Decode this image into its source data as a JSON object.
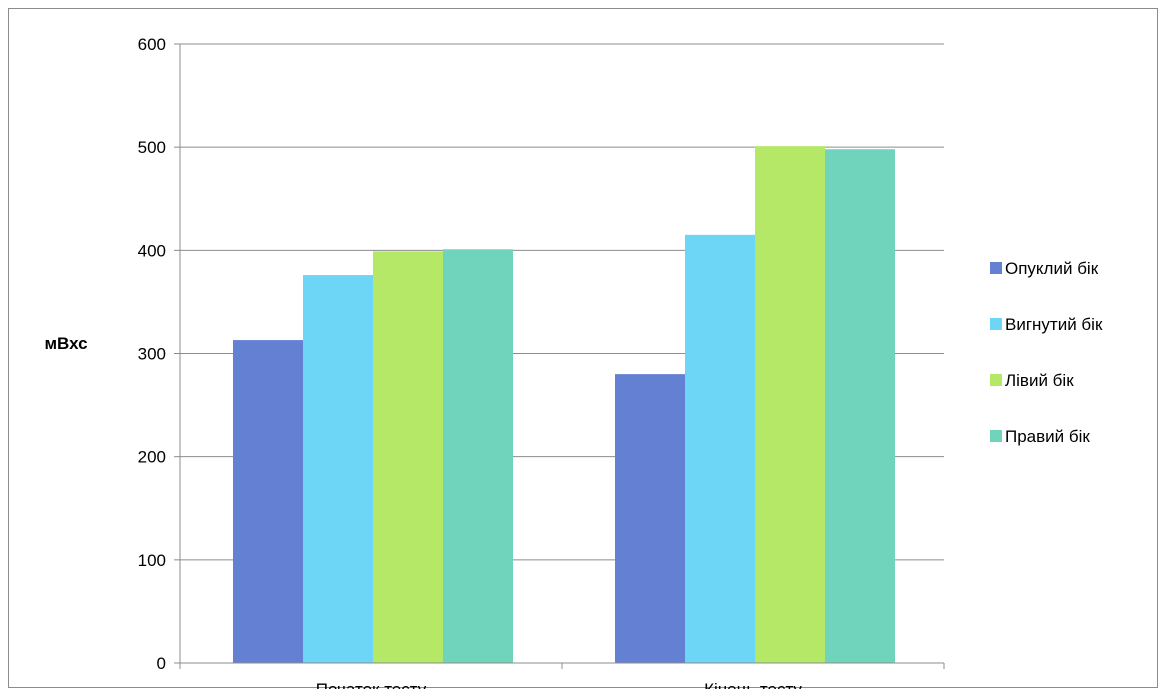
{
  "chart_data": {
    "type": "bar",
    "title": "",
    "xlabel": "",
    "ylabel": "мВхс",
    "ylim": [
      0,
      600
    ],
    "yticks": [
      0,
      100,
      200,
      300,
      400,
      500,
      600
    ],
    "grid": true,
    "legend_position": "right",
    "categories": [
      "Початок тесту",
      "Кінець тесту"
    ],
    "series": [
      {
        "name": "Опуклий бік",
        "color": "#6380d2",
        "values": [
          313,
          280
        ]
      },
      {
        "name": "Вигнутий бік",
        "color": "#6dd5f5",
        "values": [
          376,
          415
        ]
      },
      {
        "name": "Лівий бік",
        "color": "#b5e866",
        "values": [
          399,
          501
        ]
      },
      {
        "name": "Правий бік",
        "color": "#6fd4bb",
        "values": [
          401,
          498
        ]
      }
    ]
  }
}
